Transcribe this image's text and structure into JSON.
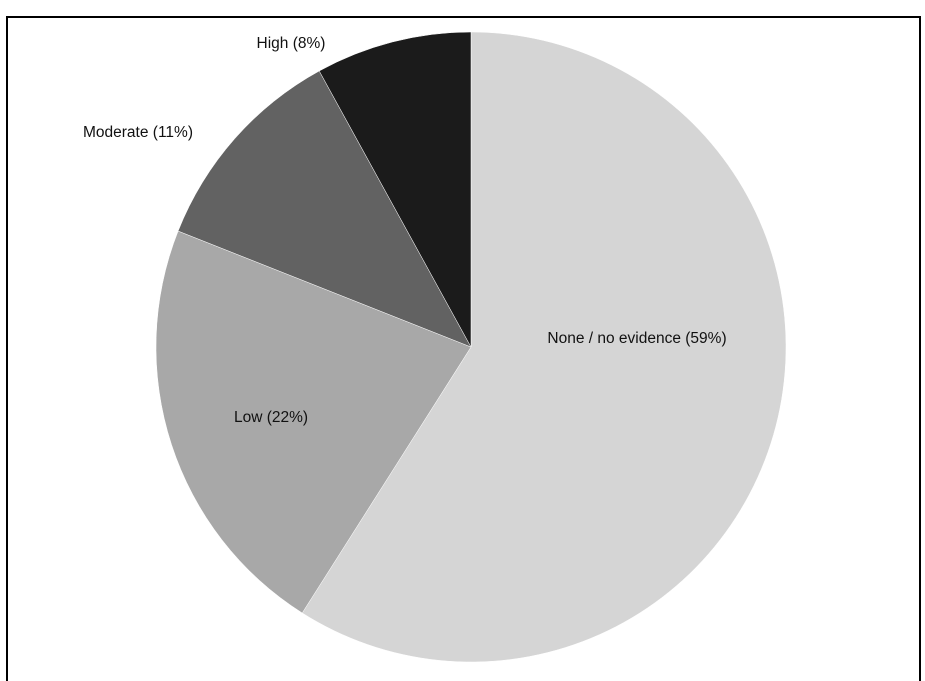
{
  "chart_data": {
    "type": "pie",
    "title": "",
    "slices": [
      {
        "label": "None / no evidence (59%)",
        "value": 59,
        "color": "#d5d5d5"
      },
      {
        "label": "Low (22%)",
        "value": 22,
        "color": "#a8a8a8"
      },
      {
        "label": "Moderate (11%)",
        "value": 11,
        "color": "#626262"
      },
      {
        "label": "High (8%)",
        "value": 8,
        "color": "#1b1b1b"
      }
    ],
    "start_angle_deg": 0,
    "direction": "clockwise",
    "legend": "none"
  }
}
